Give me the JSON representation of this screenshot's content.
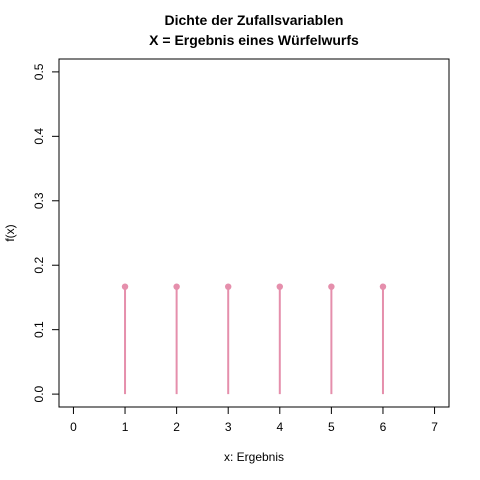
{
  "chart_data": {
    "type": "scatter",
    "style": "stem",
    "title_line1": "Dichte der Zufallsvariablen",
    "title_line2": "X = Ergebnis eines Würfelwurfs",
    "xlabel": "x: Ergebnis",
    "ylabel": "f(x)",
    "xlim": [
      -0.28,
      7.28
    ],
    "ylim": [
      -0.02,
      0.52
    ],
    "x_ticks": [
      "0",
      "1",
      "2",
      "3",
      "4",
      "5",
      "6",
      "7"
    ],
    "y_ticks": [
      "0.0",
      "0.1",
      "0.2",
      "0.3",
      "0.4",
      "0.5"
    ],
    "x": [
      1,
      2,
      3,
      4,
      5,
      6
    ],
    "y": [
      0.1667,
      0.1667,
      0.1667,
      0.1667,
      0.1667,
      0.1667
    ],
    "grid": false,
    "legend": "none",
    "color": "#e58fac"
  }
}
